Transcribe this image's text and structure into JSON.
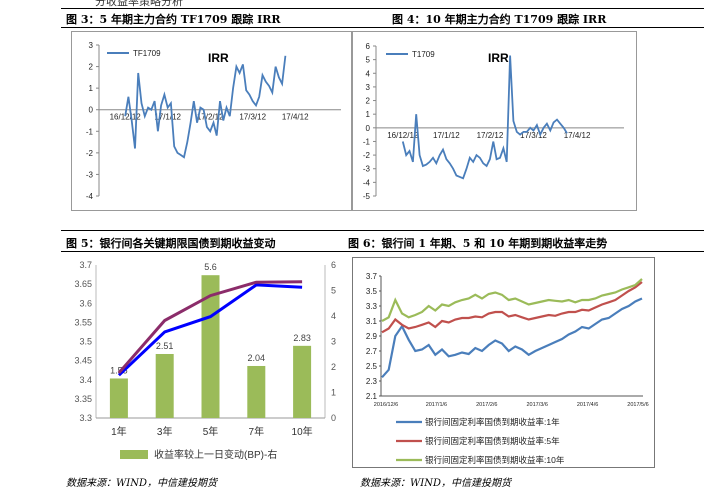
{
  "page": {
    "top_fragment": "分收益率策略分析"
  },
  "fig3": {
    "caption": "图 3：5 年期主力合约 TF1709 跟踪 IRR",
    "annotation": "IRR",
    "chart_data": {
      "type": "line",
      "title": "",
      "series": [
        {
          "name": "TF1709",
          "color": "#4a7ebb",
          "x": [
            "16/12/12",
            "16/12/14",
            "16/12/16",
            "16/12/19",
            "16/12/21",
            "16/12/23",
            "16/12/27",
            "16/12/29",
            "17/1/3",
            "17/1/5",
            "17/1/9",
            "17/1/11",
            "17/1/13",
            "17/1/17",
            "17/1/19",
            "17/1/23",
            "17/1/25",
            "17/2/3",
            "17/2/7",
            "17/2/9",
            "17/2/13",
            "17/2/15",
            "17/2/17",
            "17/2/21",
            "17/2/23",
            "17/2/27",
            "17/3/1",
            "17/3/3",
            "17/3/7",
            "17/3/9",
            "17/3/13",
            "17/3/15",
            "17/3/17",
            "17/3/21",
            "17/3/23",
            "17/3/27",
            "17/3/29",
            "17/3/31",
            "17/4/5",
            "17/4/7",
            "17/4/11",
            "17/4/13",
            "17/4/17",
            "17/4/19",
            "17/4/21",
            "17/4/25",
            "17/4/27",
            "17/5/2",
            "17/5/4",
            "17/5/8"
          ],
          "values": [
            -0.3,
            0.6,
            -0.5,
            -1.8,
            1.7,
            0.3,
            -0.3,
            0.1,
            0.0,
            0.4,
            -1.0,
            0.2,
            0.7,
            0.1,
            0.3,
            -1.7,
            -2.0,
            -2.1,
            -2.2,
            -1.5,
            -0.6,
            0.4,
            -0.6,
            0.1,
            0.0,
            -0.8,
            -1.0,
            -0.6,
            -1.2,
            0.4,
            -0.5,
            0.1,
            -0.3,
            1.0,
            2.0,
            1.7,
            2.1,
            0.9,
            0.7,
            0.4,
            0.2,
            0.6,
            1.6,
            1.3,
            1.1,
            0.8,
            2.0,
            1.5,
            1.2,
            2.5
          ]
        }
      ],
      "xlabels": [
        "16/12/12",
        "17/1/12",
        "17/2/12",
        "17/3/12",
        "17/4/12"
      ],
      "xlim": [
        -8,
        66
      ],
      "ylim": [
        -4,
        3
      ],
      "yticks": [
        "3",
        "2",
        "1",
        "0",
        "-1",
        "-2",
        "-3",
        "-4"
      ],
      "legend": "top-left"
    }
  },
  "fig4": {
    "caption": "图 4：10 年期主力合约 T1709 跟踪 IRR",
    "annotation": "IRR",
    "chart_data": {
      "type": "line",
      "title": "",
      "series": [
        {
          "name": "T1709",
          "color": "#4a7ebb",
          "x": [
            "16/12/12",
            "16/12/14",
            "16/12/16",
            "16/12/19",
            "16/12/21",
            "16/12/23",
            "16/12/27",
            "16/12/29",
            "17/1/3",
            "17/1/5",
            "17/1/9",
            "17/1/11",
            "17/1/13",
            "17/1/17",
            "17/1/19",
            "17/1/23",
            "17/1/25",
            "17/2/3",
            "17/2/7",
            "17/2/9",
            "17/2/13",
            "17/2/15",
            "17/2/17",
            "17/2/21",
            "17/2/23",
            "17/2/27",
            "17/3/1",
            "17/3/3",
            "17/3/7",
            "17/3/9",
            "17/3/13",
            "17/3/15",
            "17/3/17",
            "17/3/21",
            "17/3/23",
            "17/3/27",
            "17/3/29",
            "17/3/31",
            "17/4/5",
            "17/4/7",
            "17/4/11",
            "17/4/13",
            "17/4/17",
            "17/4/19",
            "17/4/21",
            "17/4/25",
            "17/4/27",
            "17/5/2",
            "17/5/4",
            "17/5/8"
          ],
          "values": [
            -1.0,
            -2.0,
            -1.7,
            -2.5,
            1.0,
            -2.0,
            -2.8,
            -2.7,
            -2.5,
            -2.2,
            -2.6,
            -2.0,
            -1.6,
            -2.3,
            -2.6,
            -3.0,
            -3.5,
            -3.6,
            -3.7,
            -3.0,
            -2.2,
            -2.5,
            -2.0,
            -2.2,
            -2.6,
            -2.8,
            -2.3,
            -1.0,
            -2.3,
            -2.2,
            -1.5,
            -2.5,
            5.3,
            0.5,
            -0.3,
            -0.5,
            -0.3,
            -0.3,
            0.0,
            -0.2,
            0.2,
            -0.5,
            0.0,
            0.3,
            -0.2,
            0.4,
            0.6,
            0.3,
            0.0,
            -0.4
          ]
        }
      ],
      "xlabels": [
        "16/12/12",
        "17/1/12",
        "17/2/12",
        "17/3/12",
        "17/4/12"
      ],
      "xlim": [
        -8,
        66
      ],
      "ylim": [
        -5,
        6
      ],
      "yticks": [
        "6",
        "5",
        "4",
        "3",
        "2",
        "1",
        "0",
        "-1",
        "-2",
        "-3",
        "-4",
        "-5"
      ],
      "legend": "top-left"
    }
  },
  "fig5": {
    "caption": "图 5：银行间各关键期限国债到期收益变动",
    "chart_data": {
      "type": "bar",
      "categories": [
        "1年",
        "3年",
        "5年",
        "7年",
        "10年"
      ],
      "bar_series": {
        "name": "收益率较上一日变动(BP)-右",
        "color": "#9bbb59",
        "values": [
          1.55,
          2.51,
          5.6,
          2.04,
          2.83
        ],
        "labels": [
          "1.55",
          "2.51",
          "5.6",
          "2.04",
          "2.83"
        ]
      },
      "line_series": [
        {
          "color": "#0000ff",
          "values": [
            3.412,
            3.525,
            3.565,
            3.648,
            3.642
          ]
        },
        {
          "color": "#8b2c6a",
          "values": [
            3.418,
            3.555,
            3.62,
            3.655,
            3.656
          ]
        }
      ],
      "ylim_left": [
        3.3,
        3.7
      ],
      "yticks_left": [
        "3.7",
        "3.65",
        "3.6",
        "3.55",
        "3.5",
        "3.45",
        "3.4",
        "3.35",
        "3.3"
      ],
      "ylim_right": [
        0,
        6
      ],
      "yticks_right": [
        "6",
        "5",
        "4",
        "3",
        "2",
        "1",
        "0"
      ],
      "legend": "bottom"
    }
  },
  "fig6": {
    "caption": "图 6：银行间 1 年期、5 和 10 年期到期收益率走势",
    "chart_data": {
      "type": "line",
      "xlabels": [
        "2016/12/6",
        "2017/1/6",
        "2017/2/6",
        "2017/3/6",
        "2017/4/6",
        "2017/5/6"
      ],
      "ylim": [
        2.1,
        3.7
      ],
      "yticks": [
        "3.7",
        "3.5",
        "3.3",
        "3.1",
        "2.9",
        "2.7",
        "2.5",
        "2.3",
        "2.1"
      ],
      "series": [
        {
          "name": "银行间固定利率国债到期收益率:1年",
          "color": "#4a7ebb",
          "x": [
            "16/12/6",
            "16/12/10",
            "16/12/14",
            "16/12/18",
            "16/12/22",
            "16/12/26",
            "16/12/30",
            "17/1/3",
            "17/1/7",
            "17/1/11",
            "17/1/15",
            "17/1/19",
            "17/1/23",
            "17/1/27",
            "17/1/31",
            "17/2/4",
            "17/2/8",
            "17/2/12",
            "17/2/16",
            "17/2/20",
            "17/2/24",
            "17/2/28",
            "17/3/4",
            "17/3/8",
            "17/3/12",
            "17/3/16",
            "17/3/20",
            "17/3/24",
            "17/3/28",
            "17/4/1",
            "17/4/5",
            "17/4/9",
            "17/4/13",
            "17/4/17",
            "17/4/21",
            "17/4/25",
            "17/4/29",
            "17/5/3",
            "17/5/7",
            "17/5/11"
          ],
          "values": [
            2.35,
            2.45,
            2.9,
            3.03,
            2.85,
            2.7,
            2.72,
            2.78,
            2.65,
            2.72,
            2.63,
            2.65,
            2.68,
            2.66,
            2.74,
            2.7,
            2.78,
            2.84,
            2.8,
            2.7,
            2.76,
            2.72,
            2.65,
            2.7,
            2.74,
            2.78,
            2.82,
            2.86,
            2.92,
            2.96,
            3.02,
            3.0,
            3.06,
            3.12,
            3.14,
            3.2,
            3.26,
            3.3,
            3.36,
            3.4
          ]
        },
        {
          "name": "银行间固定利率国债到期收益率:5年",
          "color": "#c0504d",
          "x": [
            "16/12/6",
            "16/12/10",
            "16/12/14",
            "16/12/18",
            "16/12/22",
            "16/12/26",
            "16/12/30",
            "17/1/3",
            "17/1/7",
            "17/1/11",
            "17/1/15",
            "17/1/19",
            "17/1/23",
            "17/1/27",
            "17/1/31",
            "17/2/4",
            "17/2/8",
            "17/2/12",
            "17/2/16",
            "17/2/20",
            "17/2/24",
            "17/2/28",
            "17/3/4",
            "17/3/8",
            "17/3/12",
            "17/3/16",
            "17/3/20",
            "17/3/24",
            "17/3/28",
            "17/4/1",
            "17/4/5",
            "17/4/9",
            "17/4/13",
            "17/4/17",
            "17/4/21",
            "17/4/25",
            "17/4/29",
            "17/5/3",
            "17/5/7",
            "17/5/11"
          ],
          "values": [
            2.95,
            3.0,
            3.12,
            3.05,
            3.0,
            3.02,
            3.05,
            3.08,
            3.02,
            3.1,
            3.08,
            3.12,
            3.14,
            3.14,
            3.16,
            3.15,
            3.2,
            3.22,
            3.22,
            3.16,
            3.18,
            3.15,
            3.12,
            3.14,
            3.16,
            3.18,
            3.17,
            3.2,
            3.22,
            3.22,
            3.25,
            3.24,
            3.28,
            3.32,
            3.35,
            3.38,
            3.44,
            3.5,
            3.55,
            3.62
          ]
        },
        {
          "name": "银行间固定利率国债到期收益率:10年",
          "color": "#9bbb59",
          "x": [
            "16/12/6",
            "16/12/10",
            "16/12/14",
            "16/12/18",
            "16/12/22",
            "16/12/26",
            "16/12/30",
            "17/1/3",
            "17/1/7",
            "17/1/11",
            "17/1/15",
            "17/1/19",
            "17/1/23",
            "17/1/27",
            "17/1/31",
            "17/2/4",
            "17/2/8",
            "17/2/12",
            "17/2/16",
            "17/2/20",
            "17/2/24",
            "17/2/28",
            "17/3/4",
            "17/3/8",
            "17/3/12",
            "17/3/16",
            "17/3/20",
            "17/3/24",
            "17/3/28",
            "17/4/1",
            "17/4/5",
            "17/4/9",
            "17/4/13",
            "17/4/17",
            "17/4/21",
            "17/4/25",
            "17/4/29",
            "17/5/3",
            "17/5/7",
            "17/5/11"
          ],
          "values": [
            3.1,
            3.15,
            3.38,
            3.2,
            3.15,
            3.18,
            3.22,
            3.3,
            3.24,
            3.32,
            3.3,
            3.35,
            3.38,
            3.4,
            3.45,
            3.4,
            3.46,
            3.48,
            3.45,
            3.38,
            3.4,
            3.36,
            3.32,
            3.34,
            3.36,
            3.38,
            3.37,
            3.36,
            3.38,
            3.35,
            3.38,
            3.38,
            3.4,
            3.44,
            3.46,
            3.48,
            3.52,
            3.55,
            3.58,
            3.66
          ]
        }
      ],
      "legend": "bottom"
    }
  },
  "source_left": "数据来源：WIND，中信建投期货",
  "source_right": "数据来源：WIND，中信建投期货"
}
